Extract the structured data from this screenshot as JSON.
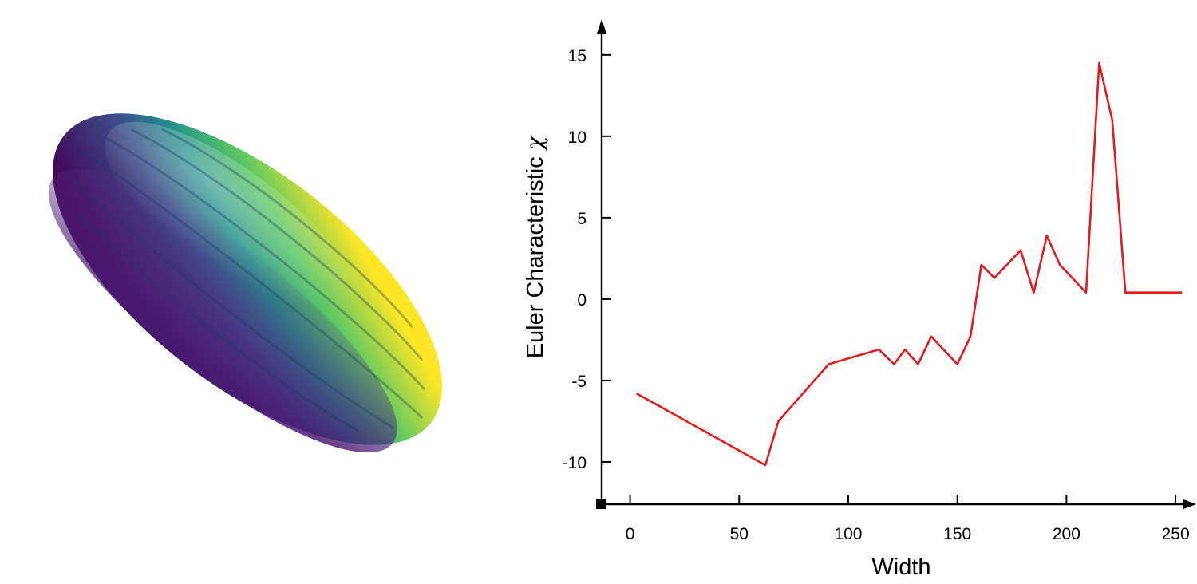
{
  "render": {
    "subject": "3d-surface-render",
    "colormap": [
      "#440154",
      "#3b528b",
      "#21918c",
      "#5ec962",
      "#fde725"
    ]
  },
  "chart_data": {
    "type": "line",
    "xlabel": "Width",
    "ylabel": "Euler Characteristic",
    "ylabel_symbol": "χ",
    "xlim": [
      -13,
      258
    ],
    "ylim": [
      -12.6,
      17
    ],
    "xticks": [
      0,
      50,
      100,
      150,
      200,
      250
    ],
    "yticks": [
      -10,
      -5,
      0,
      5,
      10,
      15
    ],
    "grid": false,
    "line_color": "#e8191c",
    "series": [
      {
        "x": [
          3,
          62,
          68,
          91,
          114,
          121,
          126,
          132,
          138,
          150,
          156,
          161,
          167,
          179,
          185,
          191,
          197,
          209,
          215,
          221,
          227,
          253
        ],
        "y": [
          -5.8,
          -10.2,
          -7.5,
          -4,
          -3.1,
          -4,
          -3.1,
          -4,
          -2.3,
          -4,
          -2.3,
          2.1,
          1.3,
          3.0,
          0.4,
          3.9,
          2.1,
          0.4,
          14.5,
          11,
          0.4,
          0.4
        ]
      }
    ]
  }
}
